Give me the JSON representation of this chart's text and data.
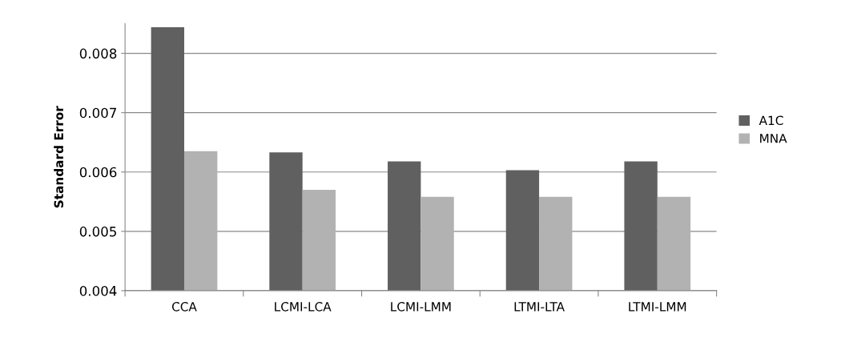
{
  "chart_data": {
    "type": "bar",
    "ylabel": "Standard Error",
    "categories": [
      "CCA",
      "LCMI-LCA",
      "LCMI-LMM",
      "LTMI-LTA",
      "LTMI-LMM"
    ],
    "series": [
      {
        "name": "A1C",
        "color": "#606060",
        "values": [
          0.00844,
          0.00633,
          0.00618,
          0.00603,
          0.00618
        ]
      },
      {
        "name": "MNA",
        "color": "#b2b2b2",
        "values": [
          0.00635,
          0.0057,
          0.00558,
          0.00558,
          0.00558
        ]
      }
    ],
    "ylim": [
      0.004,
      0.0085
    ],
    "yticks": [
      {
        "value": 0.004,
        "label": "0.004"
      },
      {
        "value": 0.005,
        "label": "0.005"
      },
      {
        "value": 0.006,
        "label": "0.006"
      },
      {
        "value": 0.007,
        "label": "0.007"
      },
      {
        "value": 0.008,
        "label": "0.008"
      }
    ],
    "grid": "y",
    "legend": "right"
  }
}
